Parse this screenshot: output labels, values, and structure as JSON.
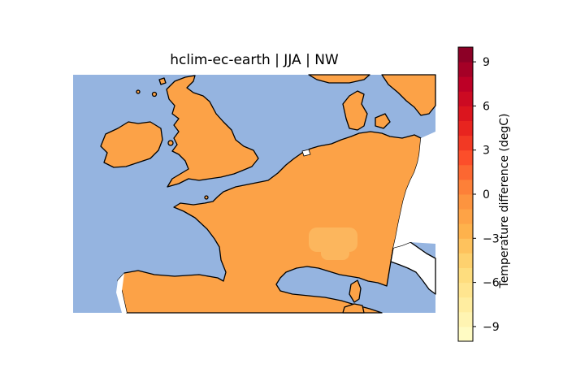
{
  "map": {
    "title": "hclim-ec-earth | JJA | NW",
    "colors": {
      "sea": "#95b4e0",
      "land": "#fca247",
      "coastline": "#000000",
      "land_warm_patch": "#fdb55a"
    }
  },
  "colorbar": {
    "label": "Temperature difference (degC)",
    "min": -10,
    "max": 10,
    "step": 1,
    "ticks": [
      -9,
      -6,
      -3,
      0,
      3,
      6,
      9
    ],
    "tick_labels": [
      "−9",
      "−6",
      "−3",
      "0",
      "3",
      "6",
      "9"
    ],
    "colormap": "YlOrRd",
    "colormap_stops": [
      "#ffffcc",
      "#ffeda0",
      "#fed976",
      "#feb24c",
      "#fd8d3c",
      "#fc4e2a",
      "#e31a1c",
      "#bd0026",
      "#800026"
    ]
  }
}
